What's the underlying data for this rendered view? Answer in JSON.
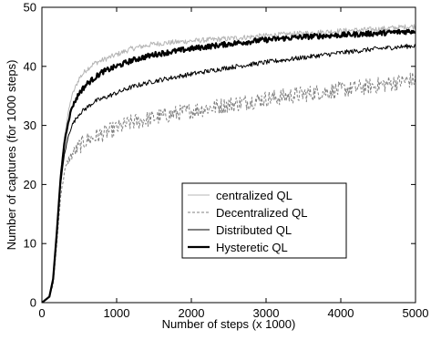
{
  "chart_data": {
    "type": "line",
    "xlabel": "Number of steps (x 1000)",
    "ylabel": "Number of captures (for 1000 steps)",
    "xlim": [
      0,
      5000
    ],
    "ylim": [
      0,
      50
    ],
    "xticks": [
      0,
      1000,
      2000,
      3000,
      4000,
      5000
    ],
    "yticks": [
      0,
      10,
      20,
      30,
      40,
      50
    ],
    "x_tick_labels": [
      "0",
      "1000",
      "2000",
      "3000",
      "4000",
      "5000"
    ],
    "y_tick_labels": [
      "0",
      "10",
      "20",
      "30",
      "40",
      "50"
    ],
    "grid": false,
    "legend_position": "center-right",
    "series": [
      {
        "name": "centralized QL",
        "color": "#b4b4b4",
        "line_style": "solid",
        "x": [
          0,
          100,
          150,
          200,
          250,
          300,
          350,
          400,
          500,
          600,
          700,
          800,
          900,
          1000,
          1200,
          1500,
          2000,
          2500,
          3000,
          3500,
          4000,
          4500,
          5000
        ],
        "y": [
          0,
          1,
          4,
          13,
          22,
          28,
          32,
          35,
          38,
          39.5,
          40.5,
          41,
          41.5,
          42,
          43,
          43.8,
          44.3,
          44.7,
          45.2,
          45.6,
          46,
          46.3,
          46.8
        ]
      },
      {
        "name": "Decentralized QL",
        "color": "#808080",
        "line_style": "dashed",
        "x": [
          0,
          100,
          150,
          200,
          250,
          300,
          350,
          400,
          500,
          600,
          700,
          800,
          900,
          1000,
          1200,
          1500,
          2000,
          2500,
          3000,
          3500,
          4000,
          4500,
          5000
        ],
        "y": [
          0,
          1,
          3,
          10,
          18,
          22,
          24,
          25,
          26.5,
          27.5,
          28,
          28.5,
          29,
          29.5,
          30.5,
          31.3,
          32.5,
          33.5,
          34.5,
          35.3,
          36,
          36.8,
          37.8
        ]
      },
      {
        "name": "Distributed QL",
        "color": "#000000",
        "line_style": "solid",
        "x": [
          0,
          100,
          150,
          200,
          250,
          300,
          350,
          400,
          500,
          600,
          700,
          800,
          900,
          1000,
          1200,
          1500,
          2000,
          2500,
          3000,
          3500,
          4000,
          4500,
          5000
        ],
        "y": [
          0,
          1,
          4,
          12,
          20,
          25,
          28,
          30,
          32,
          33,
          34,
          34.5,
          35,
          35.5,
          36.5,
          37.5,
          38.7,
          39.8,
          40.7,
          41.5,
          42.3,
          43,
          43.5
        ]
      },
      {
        "name": "Hysteretic QL",
        "color": "#000000",
        "line_style": "solid-bold",
        "x": [
          0,
          100,
          150,
          200,
          250,
          300,
          350,
          400,
          500,
          600,
          700,
          800,
          900,
          1000,
          1200,
          1500,
          2000,
          2500,
          3000,
          3500,
          4000,
          4500,
          5000
        ],
        "y": [
          0,
          1,
          4,
          12,
          21,
          27,
          30.5,
          33,
          35.5,
          37,
          38,
          39,
          39.5,
          40,
          41,
          42,
          43,
          43.8,
          44.5,
          45,
          45.3,
          45.6,
          46
        ]
      }
    ]
  }
}
